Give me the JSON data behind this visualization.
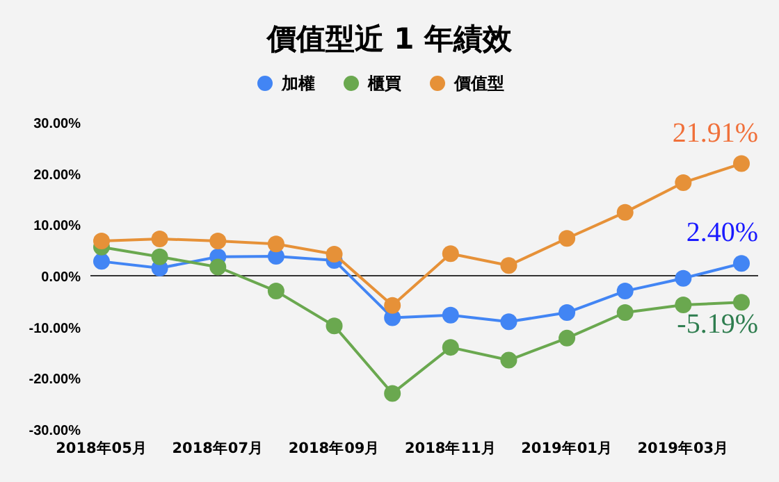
{
  "chart_data": {
    "type": "line",
    "title": "價值型近 1 年績效",
    "categories": [
      "2018年05月",
      null,
      "2018年07月",
      null,
      "2018年09月",
      null,
      "2018年11月",
      null,
      "2019年01月",
      null,
      "2019年03月",
      null
    ],
    "series": [
      {
        "name": "加權",
        "color": "#4285f4",
        "values": [
          2.8,
          1.5,
          3.7,
          3.8,
          3.0,
          -8.2,
          -7.7,
          -9.0,
          -7.2,
          -3.0,
          -0.5,
          2.4
        ],
        "value_labels": [
          null,
          null,
          null,
          null,
          null,
          null,
          null,
          null,
          null,
          null,
          null,
          "2.40%"
        ]
      },
      {
        "name": "櫃買",
        "color": "#6aa84f",
        "values": [
          5.6,
          3.7,
          1.7,
          -3.0,
          -9.8,
          -23.0,
          -14.0,
          -16.5,
          -12.2,
          -7.2,
          -5.7,
          -5.19
        ],
        "value_labels": [
          null,
          null,
          null,
          null,
          null,
          null,
          null,
          null,
          null,
          null,
          null,
          "-5.19%"
        ]
      },
      {
        "name": "價值型",
        "color": "#e69138",
        "values": [
          6.8,
          7.2,
          6.8,
          6.2,
          4.2,
          -5.8,
          4.3,
          2.0,
          7.3,
          12.4,
          18.2,
          21.91
        ],
        "value_labels": [
          null,
          null,
          null,
          null,
          null,
          null,
          null,
          null,
          null,
          null,
          null,
          "21.91%"
        ]
      }
    ],
    "ylim": [
      -30,
      30
    ],
    "yticks": [
      {
        "value": 30,
        "label": "30.00%"
      },
      {
        "value": 20,
        "label": "20.00%"
      },
      {
        "value": 10,
        "label": "10.00%"
      },
      {
        "value": 0,
        "label": "0.00%"
      },
      {
        "value": -10,
        "label": "-10.00%"
      },
      {
        "value": -20,
        "label": "-20.00%"
      },
      {
        "value": -30,
        "label": "-30.00%"
      }
    ],
    "ref_lines": [
      {
        "axis": "y",
        "value": 0,
        "color": "#333333"
      }
    ],
    "legend": "top",
    "marker": "circle",
    "line_style": "solid"
  }
}
